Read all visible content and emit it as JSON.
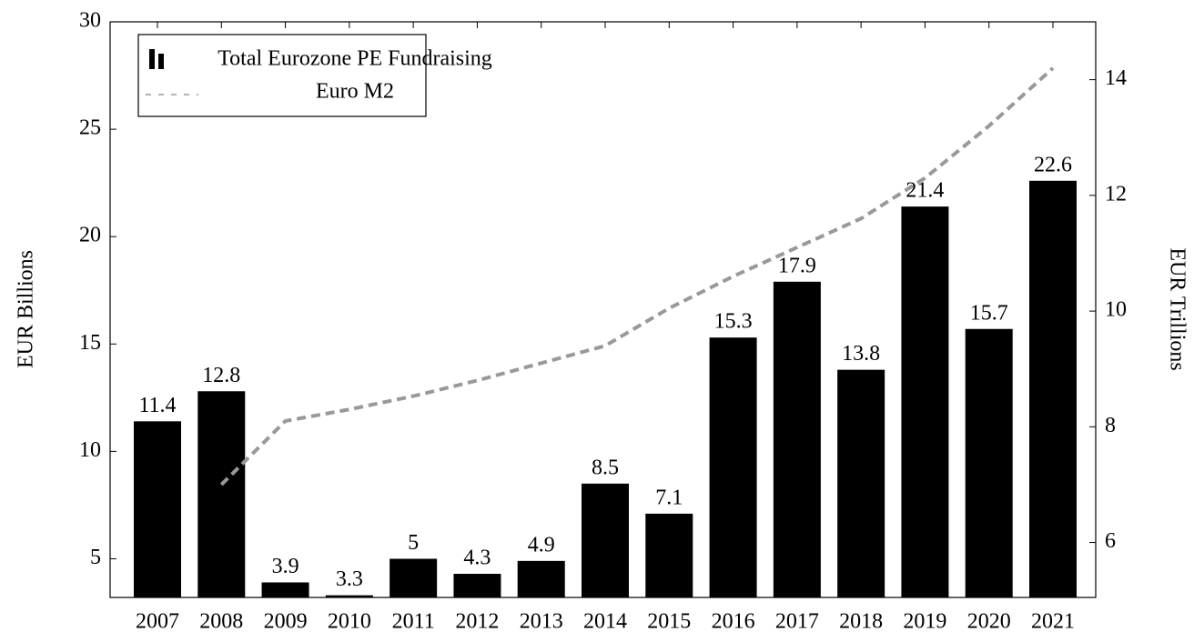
{
  "chart_data": {
    "type": "bar",
    "categories": [
      "2007",
      "2008",
      "2009",
      "2010",
      "2011",
      "2012",
      "2013",
      "2014",
      "2015",
      "2016",
      "2017",
      "2018",
      "2019",
      "2020",
      "2021"
    ],
    "series": [
      {
        "name": "Total Eurozone PE Fundraising",
        "type": "bar",
        "color": "#000000",
        "values": [
          11.4,
          12.8,
          3.9,
          3.3,
          5,
          4.3,
          4.9,
          8.5,
          7.1,
          15.3,
          17.9,
          13.8,
          21.4,
          15.7,
          22.6
        ]
      },
      {
        "name": "Euro M2",
        "type": "line",
        "axis": "y2",
        "color": "#999999",
        "dash": true,
        "values": [
          null,
          7.0,
          8.1,
          8.3,
          8.53,
          8.8,
          9.1,
          9.4,
          10.05,
          10.6,
          11.1,
          11.6,
          12.3,
          13.2,
          14.2
        ]
      }
    ],
    "ylabel": "EUR Billions",
    "y2label": "EUR Trillions",
    "ylim": [
      3.2,
      30
    ],
    "yticks": [
      5,
      10,
      15,
      20,
      25,
      30
    ],
    "y2lim": [
      5.05,
      15
    ],
    "y2ticks": [
      6,
      8,
      10,
      12,
      14
    ],
    "legend": "upper left"
  }
}
